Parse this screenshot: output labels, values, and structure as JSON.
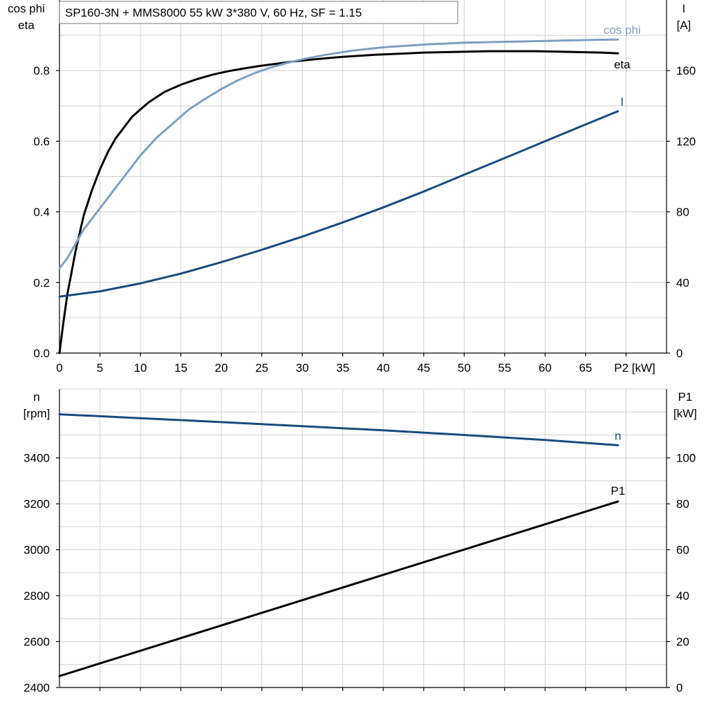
{
  "chart_data": [
    {
      "type": "line",
      "title": "SP160-3N + MMS8000   55 kW   3*380 V, 60 Hz, SF = 1.15",
      "xlabel": "P2 [kW]",
      "x_ticks": [
        "0",
        "5",
        "10",
        "15",
        "20",
        "25",
        "30",
        "35",
        "40",
        "45",
        "50",
        "55",
        "60",
        "65"
      ],
      "xlim": [
        0,
        75
      ],
      "ylabel_left": [
        "cos phi",
        "eta"
      ],
      "ylim_left": [
        0,
        1.0
      ],
      "y_ticks_left": [
        "0.0",
        "0.2",
        "0.4",
        "0.6",
        "0.8"
      ],
      "ylabel_right": [
        "I",
        "[A]"
      ],
      "ylim_right": [
        0,
        200
      ],
      "y_ticks_right": [
        "0",
        "40",
        "80",
        "120",
        "160"
      ],
      "grid": true,
      "series": [
        {
          "name": "eta",
          "axis": "left",
          "color": "#000000",
          "x": [
            0,
            0.5,
            1,
            1.5,
            2,
            3,
            4,
            5,
            6,
            7,
            8,
            9,
            10,
            11,
            12,
            13,
            14,
            15,
            17,
            19,
            21,
            23,
            25,
            27,
            29,
            31,
            33,
            35,
            37,
            39,
            41,
            43,
            45,
            47,
            49,
            51,
            53,
            55,
            57,
            59,
            61,
            63,
            65,
            67,
            69
          ],
          "y": [
            0,
            0.09,
            0.17,
            0.23,
            0.29,
            0.39,
            0.46,
            0.52,
            0.57,
            0.61,
            0.64,
            0.67,
            0.69,
            0.71,
            0.725,
            0.74,
            0.75,
            0.76,
            0.776,
            0.789,
            0.799,
            0.807,
            0.814,
            0.82,
            0.826,
            0.831,
            0.835,
            0.839,
            0.842,
            0.845,
            0.847,
            0.849,
            0.851,
            0.852,
            0.853,
            0.854,
            0.855,
            0.855,
            0.855,
            0.855,
            0.854,
            0.853,
            0.852,
            0.851,
            0.849
          ]
        },
        {
          "name": "cos phi",
          "axis": "left",
          "color": "#7f9fbf",
          "x": [
            0,
            1,
            2,
            3,
            4,
            5,
            6,
            7,
            8,
            9,
            10,
            12,
            14,
            16,
            18,
            20,
            22,
            24,
            26,
            28,
            30,
            32,
            34,
            36,
            38,
            40,
            42,
            44,
            46,
            48,
            50,
            52,
            54,
            56,
            58,
            60,
            62,
            64,
            66,
            69
          ],
          "y": [
            0.24,
            0.27,
            0.31,
            0.35,
            0.38,
            0.41,
            0.44,
            0.47,
            0.5,
            0.53,
            0.56,
            0.61,
            0.65,
            0.69,
            0.72,
            0.748,
            0.772,
            0.792,
            0.808,
            0.821,
            0.832,
            0.841,
            0.849,
            0.856,
            0.861,
            0.866,
            0.869,
            0.872,
            0.875,
            0.877,
            0.879,
            0.88,
            0.881,
            0.882,
            0.883,
            0.884,
            0.885,
            0.886,
            0.887,
            0.888
          ]
        },
        {
          "name": "I",
          "axis": "right",
          "color": "#1a4a7a",
          "x": [
            0,
            5,
            10,
            15,
            20,
            25,
            30,
            35,
            40,
            45,
            50,
            55,
            60,
            65,
            69
          ],
          "y": [
            32,
            35,
            39.5,
            45,
            51.5,
            58.5,
            66,
            74,
            82.5,
            91.5,
            101,
            110.5,
            120,
            129.5,
            137
          ]
        }
      ]
    },
    {
      "type": "line",
      "title": "",
      "xlim": [
        0,
        75
      ],
      "ylabel_left": [
        "n",
        "[rpm]"
      ],
      "ylim_left": [
        2400,
        3700
      ],
      "y_ticks_left": [
        "2400",
        "2600",
        "2800",
        "3000",
        "3200",
        "3400"
      ],
      "ylabel_right": [
        "P1",
        "[kW]"
      ],
      "ylim_right": [
        0,
        130
      ],
      "y_ticks_right": [
        "0",
        "20",
        "40",
        "60",
        "80",
        "100"
      ],
      "grid": true,
      "series": [
        {
          "name": "n",
          "axis": "left",
          "color": "#1a4a7a",
          "x": [
            0,
            10,
            20,
            30,
            40,
            50,
            60,
            69
          ],
          "y": [
            3590,
            3573,
            3556,
            3538,
            3520,
            3500,
            3478,
            3455
          ]
        },
        {
          "name": "P1",
          "axis": "right",
          "color": "#000000",
          "x": [
            0,
            69
          ],
          "y": [
            5,
            81
          ]
        }
      ]
    }
  ]
}
